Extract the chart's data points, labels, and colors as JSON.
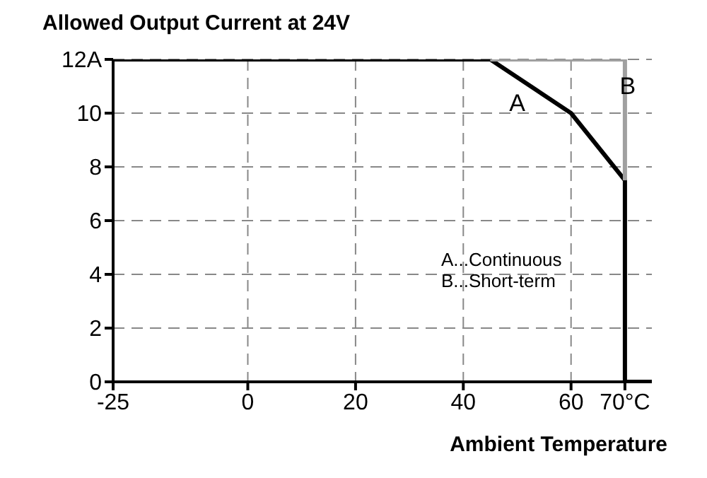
{
  "chart_data": {
    "type": "line",
    "title": "Allowed Output Current at 24V",
    "xlabel": "Ambient Temperature",
    "xlim": [
      -25,
      75
    ],
    "xticks": [
      -25,
      0,
      20,
      40,
      60,
      {
        "value": 70,
        "label": "70°C"
      }
    ],
    "ylim": [
      0,
      12
    ],
    "yticks": [
      0,
      2,
      4,
      6,
      8,
      10,
      {
        "value": 12,
        "label": "12A"
      }
    ],
    "grid": true,
    "marker": "none",
    "line_style": "solid",
    "series": [
      {
        "name": "A",
        "color": "#000000",
        "x": [
          -25,
          45,
          60,
          70,
          70,
          75
        ],
        "values": [
          12,
          12,
          10,
          7.5,
          0,
          0
        ]
      },
      {
        "name": "B",
        "color": "#a0a0a0",
        "x": [
          45,
          70,
          70
        ],
        "values": [
          12,
          12,
          7.5
        ]
      }
    ],
    "annotations": [
      "A...Continuous",
      "B...Short-term"
    ]
  }
}
